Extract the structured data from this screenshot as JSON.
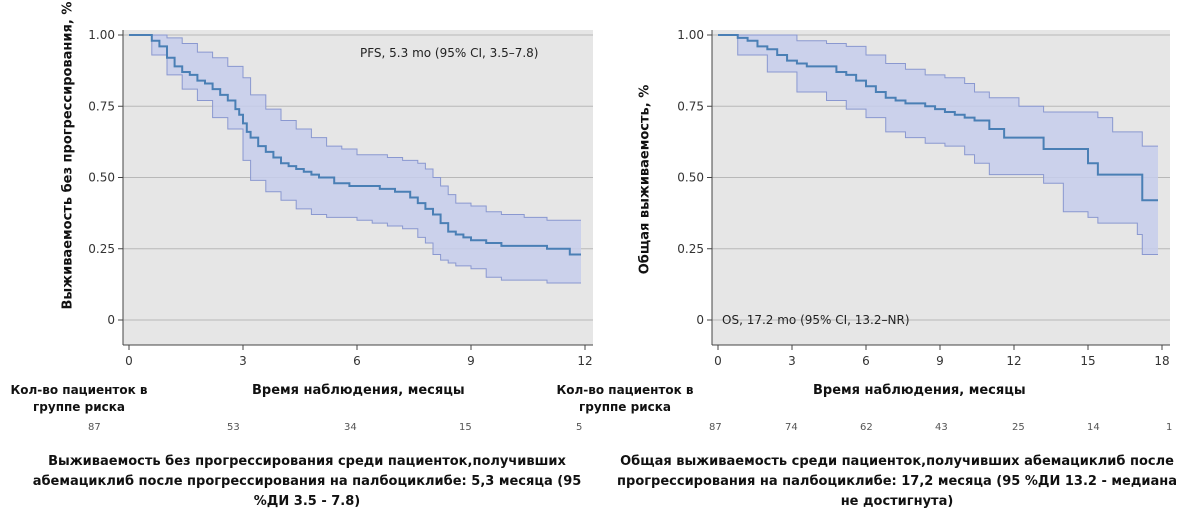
{
  "chart_data": [
    {
      "type": "line",
      "subtype": "kaplan-meier",
      "ylabel": "Выживаемость без прогрессирования, %",
      "xlabel": "Время наблюдения, месяцы",
      "annotation": "PFS, 5.3 mo (95% CI, 3.5–7.8)",
      "xlim": [
        0,
        12
      ],
      "ylim": [
        0,
        1
      ],
      "x_ticks": [
        "0",
        "3",
        "6",
        "9",
        "12"
      ],
      "y_ticks": [
        "0",
        "0.25",
        "0.50",
        "0.75",
        "1.00"
      ],
      "grid": true,
      "colors": {
        "line": "#4a7fb5",
        "band": "#c5cdeb",
        "band_edge": "#8a98d0",
        "background": "#e6e6e6"
      },
      "series": [
        {
          "role": "estimate",
          "x": [
            0,
            0.6,
            0.8,
            1.0,
            1.2,
            1.4,
            1.6,
            1.8,
            2.0,
            2.2,
            2.4,
            2.6,
            2.8,
            2.9,
            3.0,
            3.1,
            3.2,
            3.4,
            3.6,
            3.8,
            4.0,
            4.2,
            4.4,
            4.6,
            4.8,
            5.0,
            5.4,
            5.8,
            6.2,
            6.6,
            7.0,
            7.4,
            7.6,
            7.8,
            8.0,
            8.2,
            8.4,
            8.6,
            8.8,
            9.0,
            9.4,
            9.8,
            10.4,
            11.0,
            11.6
          ],
          "y": [
            1.0,
            0.98,
            0.96,
            0.92,
            0.89,
            0.87,
            0.86,
            0.84,
            0.83,
            0.81,
            0.79,
            0.77,
            0.74,
            0.72,
            0.69,
            0.66,
            0.64,
            0.61,
            0.59,
            0.57,
            0.55,
            0.54,
            0.53,
            0.52,
            0.51,
            0.5,
            0.48,
            0.47,
            0.47,
            0.46,
            0.45,
            0.43,
            0.41,
            0.39,
            0.37,
            0.34,
            0.31,
            0.3,
            0.29,
            0.28,
            0.27,
            0.26,
            0.26,
            0.25,
            0.23
          ]
        },
        {
          "role": "ci-upper",
          "x": [
            0,
            0.6,
            1.0,
            1.4,
            1.8,
            2.2,
            2.6,
            3.0,
            3.2,
            3.6,
            4.0,
            4.4,
            4.8,
            5.2,
            5.6,
            6.0,
            6.4,
            6.8,
            7.2,
            7.6,
            7.8,
            8.0,
            8.2,
            8.4,
            8.6,
            9.0,
            9.4,
            9.8,
            10.4,
            11.0,
            11.6
          ],
          "y": [
            1.0,
            1.0,
            0.99,
            0.97,
            0.94,
            0.92,
            0.89,
            0.85,
            0.79,
            0.74,
            0.7,
            0.67,
            0.64,
            0.61,
            0.6,
            0.58,
            0.58,
            0.57,
            0.56,
            0.55,
            0.53,
            0.5,
            0.47,
            0.44,
            0.41,
            0.4,
            0.38,
            0.37,
            0.36,
            0.35,
            0.35
          ]
        },
        {
          "role": "ci-lower",
          "x": [
            0,
            0.6,
            1.0,
            1.4,
            1.8,
            2.2,
            2.6,
            3.0,
            3.2,
            3.6,
            4.0,
            4.4,
            4.8,
            5.2,
            5.6,
            6.0,
            6.4,
            6.8,
            7.2,
            7.6,
            7.8,
            8.0,
            8.2,
            8.4,
            8.6,
            9.0,
            9.4,
            9.8,
            10.4,
            11.0,
            11.6
          ],
          "y": [
            1.0,
            0.93,
            0.86,
            0.81,
            0.77,
            0.71,
            0.67,
            0.56,
            0.49,
            0.45,
            0.42,
            0.39,
            0.37,
            0.36,
            0.36,
            0.35,
            0.34,
            0.33,
            0.32,
            0.29,
            0.27,
            0.23,
            0.21,
            0.2,
            0.19,
            0.18,
            0.15,
            0.14,
            0.14,
            0.13,
            0.13
          ]
        }
      ]
    },
    {
      "type": "line",
      "subtype": "kaplan-meier",
      "ylabel": "Общая выживаемость, %",
      "xlabel": "Время наблюдения, месяцы",
      "annotation": "OS, 17.2 mo (95% CI, 13.2–NR)",
      "xlim": [
        0,
        18
      ],
      "ylim": [
        0,
        1
      ],
      "x_ticks": [
        "0",
        "3",
        "6",
        "9",
        "12",
        "15",
        "18"
      ],
      "y_ticks": [
        "0",
        "0.25",
        "0.50",
        "0.75",
        "1.00"
      ],
      "grid": true,
      "colors": {
        "line": "#4a7fb5",
        "band": "#c5cdeb",
        "band_edge": "#8a98d0",
        "background": "#e6e6e6"
      },
      "series": [
        {
          "role": "estimate",
          "x": [
            0,
            0.8,
            1.2,
            1.6,
            2.0,
            2.4,
            2.8,
            3.2,
            3.6,
            4.0,
            4.4,
            4.8,
            5.2,
            5.6,
            6.0,
            6.4,
            6.8,
            7.2,
            7.6,
            8.0,
            8.4,
            8.8,
            9.2,
            9.6,
            10.0,
            10.4,
            11.0,
            11.6,
            12.2,
            13.2,
            14.0,
            14.4,
            15.0,
            15.4,
            16.0,
            16.4,
            17.0,
            17.2,
            17.5,
            17.8
          ],
          "y": [
            1.0,
            0.99,
            0.98,
            0.96,
            0.95,
            0.93,
            0.91,
            0.9,
            0.89,
            0.89,
            0.89,
            0.87,
            0.86,
            0.84,
            0.82,
            0.8,
            0.78,
            0.77,
            0.76,
            0.76,
            0.75,
            0.74,
            0.73,
            0.72,
            0.71,
            0.7,
            0.67,
            0.64,
            0.64,
            0.6,
            0.6,
            0.6,
            0.55,
            0.51,
            0.51,
            0.51,
            0.51,
            0.42,
            0.42,
            0.42
          ]
        },
        {
          "role": "ci-upper",
          "x": [
            0,
            0.8,
            2.0,
            3.2,
            4.4,
            5.2,
            6.0,
            6.8,
            7.6,
            8.4,
            9.2,
            10.0,
            10.4,
            11.0,
            12.2,
            13.2,
            14.0,
            15.0,
            15.4,
            16.0,
            17.0,
            17.2,
            17.8
          ],
          "y": [
            1.0,
            1.0,
            1.0,
            0.98,
            0.97,
            0.96,
            0.93,
            0.9,
            0.88,
            0.86,
            0.85,
            0.83,
            0.8,
            0.78,
            0.75,
            0.73,
            0.73,
            0.73,
            0.71,
            0.66,
            0.66,
            0.61,
            0.61
          ]
        },
        {
          "role": "ci-lower",
          "x": [
            0,
            0.8,
            2.0,
            3.2,
            4.4,
            5.2,
            6.0,
            6.8,
            7.6,
            8.4,
            9.2,
            10.0,
            10.4,
            11.0,
            12.2,
            13.2,
            14.0,
            15.0,
            15.4,
            16.0,
            17.0,
            17.2,
            17.8
          ],
          "y": [
            1.0,
            0.93,
            0.87,
            0.8,
            0.77,
            0.74,
            0.71,
            0.66,
            0.64,
            0.62,
            0.61,
            0.58,
            0.55,
            0.51,
            0.51,
            0.48,
            0.38,
            0.36,
            0.34,
            0.34,
            0.3,
            0.23,
            0.23
          ]
        }
      ]
    }
  ],
  "risk_tables": [
    {
      "header": "Кол-во пациенток в группе риска",
      "counts": [
        "87",
        "53",
        "34",
        "15",
        "5"
      ]
    },
    {
      "header": "Кол-во пациенток в группе риска",
      "counts": [
        "87",
        "74",
        "62",
        "43",
        "25",
        "14",
        "1"
      ]
    }
  ],
  "captions": [
    "Выживаемость без прогрессирования среди пациенток,получивших абемациклиб после прогрессирования на палбоциклибе: 5,3 месяца (95 %ДИ 3.5 - 7.8)",
    "Общая выживаемость среди пациенток,получивших абемациклиб после прогрессирования на палбоциклибе: 17,2 месяца (95 %ДИ 13.2 - медиана не достигнута)"
  ]
}
